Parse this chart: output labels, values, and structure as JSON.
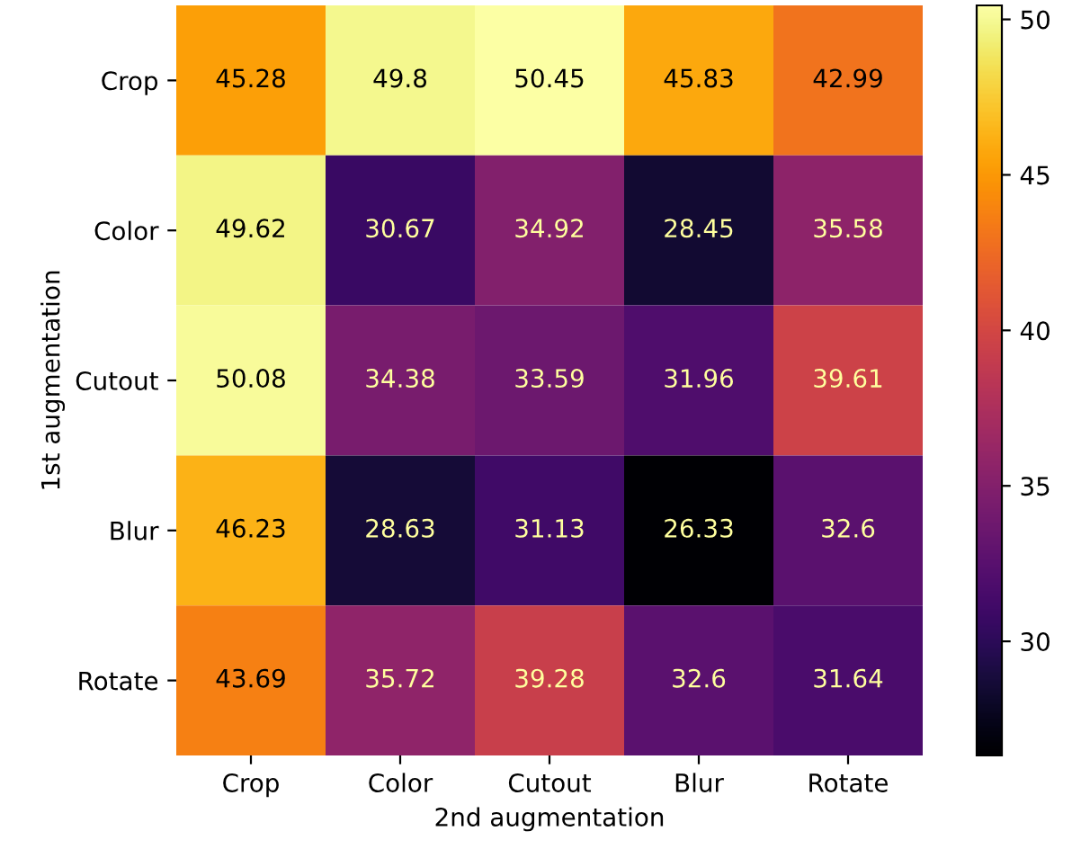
{
  "chart_data": {
    "type": "heatmap",
    "xlabel": "2nd augmentation",
    "ylabel": "1st augmentation",
    "categories": [
      "Crop",
      "Color",
      "Cutout",
      "Blur",
      "Rotate"
    ],
    "y_categories": [
      "Crop",
      "Color",
      "Cutout",
      "Blur",
      "Rotate"
    ],
    "cells": [
      [
        45.28,
        49.8,
        50.45,
        45.83,
        42.99
      ],
      [
        49.62,
        30.67,
        34.92,
        28.45,
        35.58
      ],
      [
        50.08,
        34.38,
        33.59,
        31.96,
        39.61
      ],
      [
        46.23,
        28.63,
        31.13,
        26.33,
        32.6
      ],
      [
        43.69,
        35.72,
        39.28,
        32.6,
        31.64
      ]
    ],
    "clim": [
      26.33,
      50.45
    ],
    "cticks": [
      30,
      35,
      40,
      45,
      50
    ],
    "data_labels": true
  }
}
